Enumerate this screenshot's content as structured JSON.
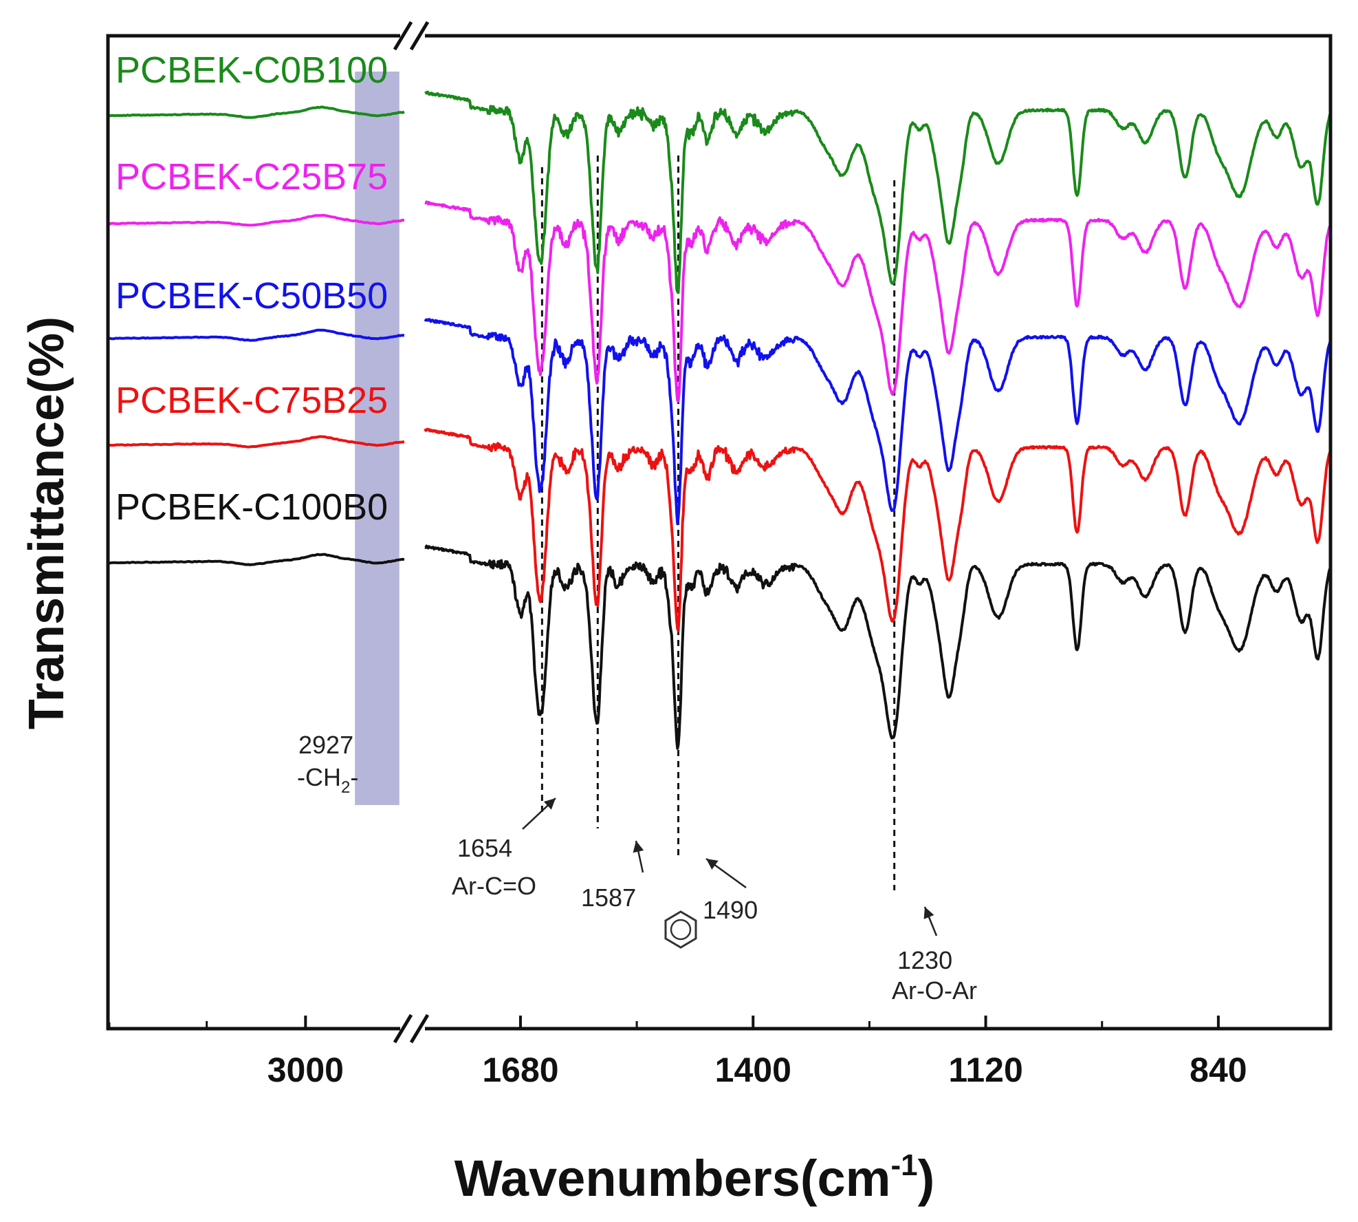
{
  "chart_data": {
    "type": "line",
    "title": "",
    "xlabel": "Wavenumbers(cm",
    "xlabel_superscript": "-1",
    "ylabel": "Transmittance(%)",
    "grid": false,
    "legend": "none",
    "x_axis_break": true,
    "x_axis_reversed": true,
    "x_segments": [
      {
        "xlim": [
          3200,
          2900
        ],
        "ticks": [
          3000
        ]
      },
      {
        "xlim": [
          1795,
          705
        ],
        "ticks": [
          1680,
          1400,
          1120,
          840
        ]
      }
    ],
    "highlight_band": {
      "xlim": [
        2950,
        2905
      ],
      "color": "#8f8fc8"
    },
    "series": [
      {
        "name": "PCBEK-C0B100",
        "color": "#1a8a1a",
        "offset": 4
      },
      {
        "name": "PCBEK-C25B75",
        "color": "#ee22ee",
        "offset": 3
      },
      {
        "name": "PCBEK-C50B50",
        "color": "#1111ee",
        "offset": 2
      },
      {
        "name": "PCBEK-C75B25",
        "color": "#ee1111",
        "offset": 1
      },
      {
        "name": "PCBEK-C100B0",
        "color": "#111111",
        "offset": 0
      }
    ],
    "peaks": [
      {
        "x": 1654,
        "label": "1654",
        "group": "Ar-C=O"
      },
      {
        "x": 1587,
        "label": "1587",
        "group": ""
      },
      {
        "x": 1490,
        "label": "1490",
        "group": ""
      },
      {
        "x": 1230,
        "label": "1230",
        "group": "Ar-O-Ar"
      }
    ],
    "band_annotation": {
      "label": "2927",
      "group": "-CH",
      "subscript": "2",
      "suffix": "-"
    },
    "benzene_icon": "benzene-ring-icon"
  }
}
